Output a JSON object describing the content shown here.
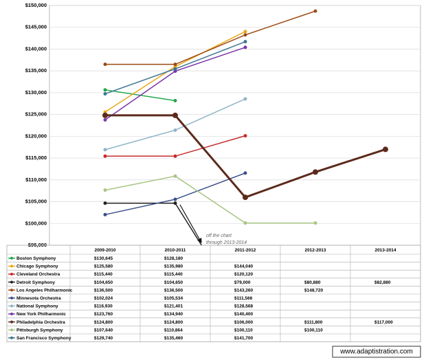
{
  "chart_data": {
    "type": "line",
    "categories": [
      "2009-2010",
      "2010-2011",
      "2011-2012",
      "2012-2013",
      "2013-2014"
    ],
    "ylim": [
      95000,
      150000
    ],
    "yticks": [
      {
        "value": 95000,
        "label": "$95,000"
      },
      {
        "value": 100000,
        "label": "$100,000"
      },
      {
        "value": 105000,
        "label": "$105,000"
      },
      {
        "value": 110000,
        "label": "$110,000"
      },
      {
        "value": 115000,
        "label": "$115,000"
      },
      {
        "value": 120000,
        "label": "$120,000"
      },
      {
        "value": 125000,
        "label": "$125,000"
      },
      {
        "value": 130000,
        "label": "$130,000"
      },
      {
        "value": 135000,
        "label": "$135,000"
      },
      {
        "value": 140000,
        "label": "$140,000"
      },
      {
        "value": 145000,
        "label": "$145,000"
      },
      {
        "value": 150000,
        "label": "$150,000"
      }
    ],
    "grid": true,
    "annotation": [
      "off the chart",
      "through 2013-2014"
    ],
    "source": "www.adaptistration.com",
    "series": [
      {
        "name": "Boston Symphony",
        "color": "#1fa64a",
        "values": [
          130645,
          128180,
          null,
          null,
          null
        ],
        "value_labels": [
          "$130,645",
          "$128,180",
          null,
          null,
          null
        ]
      },
      {
        "name": "Chicago Symphony",
        "color": "#e8a91c",
        "values": [
          125580,
          135980,
          144040,
          null,
          null
        ],
        "value_labels": [
          "$125,580",
          "$135,980",
          "$144,040",
          null,
          null
        ]
      },
      {
        "name": "Cleveland Orchestra",
        "color": "#c62c2c",
        "values": [
          115440,
          115440,
          120120,
          null,
          null
        ],
        "value_labels": [
          "$115,440",
          "$115,440",
          "$120,120",
          null,
          null
        ]
      },
      {
        "name": "Detroit Symphony",
        "color": "#222222",
        "values": [
          104650,
          104650,
          79000,
          80880,
          82880
        ],
        "value_labels": [
          "$104,650",
          "$104,650",
          "$79,000",
          "$80,880",
          "$82,880"
        ]
      },
      {
        "name": "Los Angeles Philharmonic",
        "color": "#9c4a12",
        "values": [
          136500,
          136500,
          143260,
          148720,
          null
        ],
        "value_labels": [
          "$136,500",
          "$136,500",
          "$143,260",
          "$148,720",
          null
        ]
      },
      {
        "name": "Minnesota Orchestra",
        "color": "#3a4f8c",
        "values": [
          102024,
          105534,
          111566,
          null,
          null
        ],
        "value_labels": [
          "$102,024",
          "$105,534",
          "$111,566",
          null,
          null
        ]
      },
      {
        "name": "National Symphony",
        "color": "#8fb4c9",
        "values": [
          116930,
          121401,
          128568,
          null,
          null
        ],
        "value_labels": [
          "$116,930",
          "$121,401",
          "$128,568",
          null,
          null
        ]
      },
      {
        "name": "New York Philharmonic",
        "color": "#7a35a8",
        "values": [
          123760,
          134940,
          140400,
          null,
          null
        ],
        "value_labels": [
          "$123,760",
          "$134,940",
          "$140,400",
          null,
          null
        ]
      },
      {
        "name": "Philadelphia Orchestra",
        "color": "#5c2a1c",
        "values": [
          124800,
          124800,
          106000,
          111800,
          117000
        ],
        "value_labels": [
          "$124,800",
          "$124,800",
          "$106,000",
          "$111,800",
          "$117,000"
        ]
      },
      {
        "name": "Pittsburgh Symphony",
        "color": "#a9c484",
        "values": [
          107640,
          110864,
          100110,
          100110,
          null
        ],
        "value_labels": [
          "$107,640",
          "$110,864",
          "$100,110",
          "$100,110",
          null
        ]
      },
      {
        "name": "San Francisco Symphony",
        "color": "#3d7590",
        "values": [
          129740,
          135460,
          141700,
          null,
          null
        ],
        "value_labels": [
          "$129,740",
          "$135,460",
          "$141,700",
          null,
          null
        ]
      }
    ]
  }
}
